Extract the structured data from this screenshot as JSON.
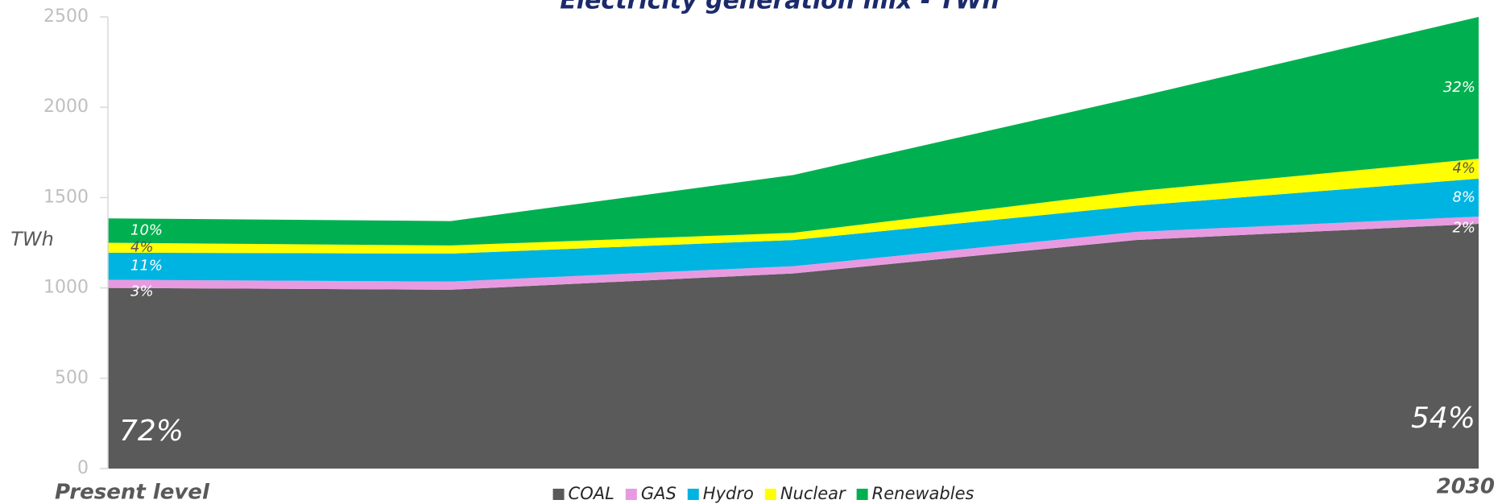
{
  "chart_data": {
    "type": "stacked-area",
    "title": "Electricity generation mix - TWh",
    "y_label": "TWh",
    "categories": [
      "Present level",
      null,
      null,
      null,
      "2030"
    ],
    "series": [
      {
        "name": "COAL",
        "color": "#595a59",
        "values": [
          1000,
          990,
          1080,
          1265,
          1355
        ],
        "share_labels": [
          "72%",
          null,
          null,
          null,
          "54%"
        ]
      },
      {
        "name": "GAS",
        "color": "#e89ae0",
        "values": [
          45,
          45,
          40,
          45,
          40
        ],
        "share_labels": [
          "3%",
          null,
          null,
          null,
          "2%"
        ]
      },
      {
        "name": "Hydro",
        "color": "#00b4e2",
        "values": [
          150,
          155,
          145,
          145,
          210
        ],
        "share_labels": [
          "11%",
          null,
          null,
          null,
          "8%"
        ]
      },
      {
        "name": "Nuclear",
        "color": "#ffff00",
        "values": [
          55,
          45,
          40,
          80,
          110
        ],
        "share_labels": [
          "4%",
          null,
          null,
          null,
          "4%"
        ]
      },
      {
        "name": "Renewables",
        "color": "#00b050",
        "values": [
          135,
          135,
          320,
          520,
          785
        ],
        "share_labels": [
          "10%",
          null,
          null,
          null,
          "32%"
        ]
      }
    ],
    "ylim": [
      0,
      2500
    ],
    "yticks": [
      0,
      500,
      1000,
      1500,
      2000,
      2500
    ]
  }
}
